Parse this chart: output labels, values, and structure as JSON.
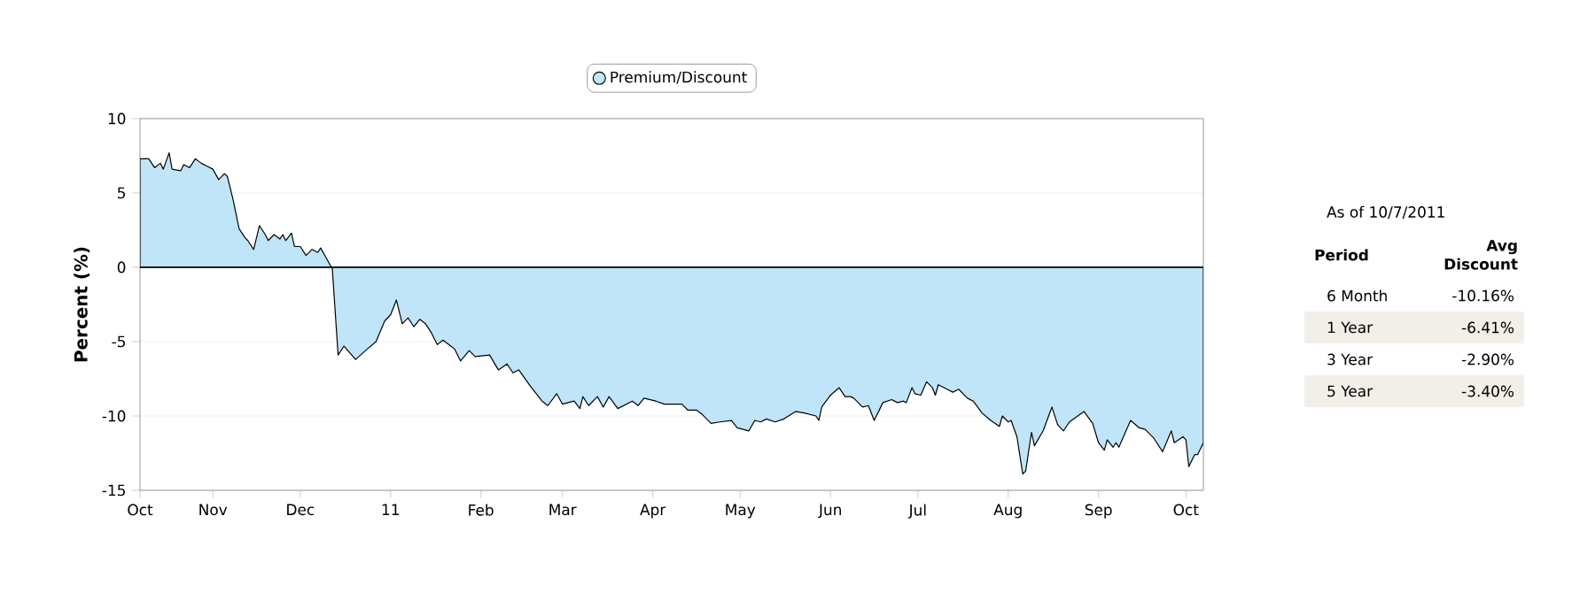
{
  "chart_data": [
    {
      "type": "area",
      "ylabel": "Percent (%)",
      "x": [
        "2010-10-07",
        "2010-10-10",
        "2010-10-12",
        "2010-10-14",
        "2010-10-15",
        "2010-10-17",
        "2010-10-18",
        "2010-10-21",
        "2010-10-22",
        "2010-10-24",
        "2010-10-26",
        "2010-10-28",
        "2010-10-30",
        "2010-11-01",
        "2010-11-03",
        "2010-11-05",
        "2010-11-06",
        "2010-11-08",
        "2010-11-10",
        "2010-11-12",
        "2010-11-13",
        "2010-11-15",
        "2010-11-17",
        "2010-11-19",
        "2010-11-20",
        "2010-11-22",
        "2010-11-24",
        "2010-11-25",
        "2010-11-26",
        "2010-11-28",
        "2010-11-29",
        "2010-12-01",
        "2010-12-03",
        "2010-12-05",
        "2010-12-07",
        "2010-12-08",
        "2010-12-10",
        "2010-12-12",
        "2010-12-14",
        "2010-12-16",
        "2010-12-20",
        "2010-12-24",
        "2010-12-27",
        "2010-12-30",
        "2011-01-01",
        "2011-01-03",
        "2011-01-05",
        "2011-01-07",
        "2011-01-09",
        "2011-01-11",
        "2011-01-13",
        "2011-01-15",
        "2011-01-17",
        "2011-01-19",
        "2011-01-23",
        "2011-01-25",
        "2011-01-28",
        "2011-01-30",
        "2011-02-04",
        "2011-02-07",
        "2011-02-10",
        "2011-02-12",
        "2011-02-14",
        "2011-02-18",
        "2011-02-22",
        "2011-02-24",
        "2011-02-27",
        "2011-03-01",
        "2011-03-05",
        "2011-03-07",
        "2011-03-08",
        "2011-03-10",
        "2011-03-13",
        "2011-03-15",
        "2011-03-17",
        "2011-03-20",
        "2011-03-25",
        "2011-03-27",
        "2011-03-29",
        "2011-04-02",
        "2011-04-05",
        "2011-04-11",
        "2011-04-13",
        "2011-04-16",
        "2011-04-18",
        "2011-04-21",
        "2011-04-24",
        "2011-04-28",
        "2011-04-30",
        "2011-05-04",
        "2011-05-06",
        "2011-05-08",
        "2011-05-10",
        "2011-05-13",
        "2011-05-16",
        "2011-05-20",
        "2011-05-23",
        "2011-05-27",
        "2011-05-28",
        "2011-05-29",
        "2011-06-01",
        "2011-06-04",
        "2011-06-06",
        "2011-06-08",
        "2011-06-09",
        "2011-06-12",
        "2011-06-14",
        "2011-06-16",
        "2011-06-19",
        "2011-06-22",
        "2011-06-24",
        "2011-06-26",
        "2011-06-27",
        "2011-06-29",
        "2011-06-30",
        "2011-07-02",
        "2011-07-04",
        "2011-07-06",
        "2011-07-07",
        "2011-07-08",
        "2011-07-11",
        "2011-07-13",
        "2011-07-15",
        "2011-07-18",
        "2011-07-20",
        "2011-07-23",
        "2011-07-26",
        "2011-07-29",
        "2011-07-30",
        "2011-08-01",
        "2011-08-02",
        "2011-08-04",
        "2011-08-06",
        "2011-08-07",
        "2011-08-09",
        "2011-08-10",
        "2011-08-13",
        "2011-08-16",
        "2011-08-18",
        "2011-08-20",
        "2011-08-22",
        "2011-08-27",
        "2011-08-30",
        "2011-09-01",
        "2011-09-03",
        "2011-09-04",
        "2011-09-06",
        "2011-09-07",
        "2011-09-08",
        "2011-09-12",
        "2011-09-15",
        "2011-09-17",
        "2011-09-20",
        "2011-09-23",
        "2011-09-26",
        "2011-09-27",
        "2011-09-30",
        "2011-10-01",
        "2011-10-02",
        "2011-10-04",
        "2011-10-05",
        "2011-10-07"
      ],
      "series": [
        {
          "name": "Premium/Discount",
          "color": "#c0e4f8",
          "values": [
            7.3,
            7.3,
            6.7,
            7.0,
            6.6,
            7.7,
            6.6,
            6.5,
            6.9,
            6.7,
            7.3,
            7.0,
            6.8,
            6.6,
            5.9,
            6.3,
            6.1,
            4.5,
            2.6,
            2.0,
            1.8,
            1.2,
            2.8,
            2.2,
            1.8,
            2.2,
            1.9,
            2.2,
            1.8,
            2.3,
            1.4,
            1.4,
            0.8,
            1.2,
            1.0,
            1.3,
            0.6,
            -0.1,
            -5.9,
            -5.3,
            -6.2,
            -5.5,
            -5.0,
            -3.6,
            -3.2,
            -2.2,
            -3.8,
            -3.4,
            -4.0,
            -3.5,
            -3.8,
            -4.4,
            -5.2,
            -4.9,
            -5.5,
            -6.3,
            -5.6,
            -6.0,
            -5.9,
            -6.9,
            -6.5,
            -7.1,
            -6.9,
            -8.0,
            -9.0,
            -9.3,
            -8.5,
            -9.2,
            -9.0,
            -9.5,
            -8.7,
            -9.3,
            -8.7,
            -9.4,
            -8.7,
            -9.5,
            -9.0,
            -9.3,
            -8.8,
            -9.0,
            -9.2,
            -9.2,
            -9.6,
            -9.6,
            -9.9,
            -10.5,
            -10.4,
            -10.3,
            -10.8,
            -11.0,
            -10.3,
            -10.4,
            -10.2,
            -10.4,
            -10.2,
            -9.7,
            -9.8,
            -10.0,
            -10.3,
            -9.4,
            -8.6,
            -8.1,
            -8.7,
            -8.7,
            -8.8,
            -9.4,
            -9.3,
            -10.3,
            -9.1,
            -8.9,
            -9.1,
            -9.0,
            -9.1,
            -8.1,
            -8.5,
            -8.6,
            -7.7,
            -8.1,
            -8.6,
            -7.9,
            -8.2,
            -8.4,
            -8.2,
            -8.8,
            -9.0,
            -9.8,
            -10.3,
            -10.7,
            -10.0,
            -10.4,
            -10.3,
            -11.4,
            -13.9,
            -13.7,
            -11.1,
            -12.0,
            -11.0,
            -9.4,
            -10.6,
            -11.0,
            -10.4,
            -9.7,
            -10.5,
            -11.8,
            -12.3,
            -11.6,
            -12.1,
            -11.8,
            -12.1,
            -10.3,
            -10.8,
            -10.9,
            -11.5,
            -12.4,
            -11.0,
            -11.8,
            -11.4,
            -11.6,
            -13.4,
            -12.6,
            -12.6,
            -11.8
          ]
        }
      ],
      "xlim": [
        "2010-10-07",
        "2011-10-07"
      ],
      "xticks": [
        {
          "value": "2010-10-07",
          "label": "Oct"
        },
        {
          "value": "2010-11-01",
          "label": "Nov"
        },
        {
          "value": "2010-12-01",
          "label": "Dec"
        },
        {
          "value": "2011-01-01",
          "label": "11"
        },
        {
          "value": "2011-02-01",
          "label": "Feb"
        },
        {
          "value": "2011-03-01",
          "label": "Mar"
        },
        {
          "value": "2011-04-01",
          "label": "Apr"
        },
        {
          "value": "2011-05-01",
          "label": "May"
        },
        {
          "value": "2011-06-01",
          "label": "Jun"
        },
        {
          "value": "2011-07-01",
          "label": "Jul"
        },
        {
          "value": "2011-08-01",
          "label": "Aug"
        },
        {
          "value": "2011-09-01",
          "label": "Sep"
        },
        {
          "value": "2011-10-01",
          "label": "Oct"
        }
      ],
      "ylim": [
        -15,
        10
      ],
      "yticks": [
        -15,
        -10,
        -5,
        0,
        5,
        10
      ],
      "ref_lines": [
        {
          "axis": "y",
          "value": 0,
          "color": "#000000"
        }
      ],
      "grid": "y",
      "legend": "top"
    },
    {
      "type": "other",
      "title": "As of 10/7/2011",
      "annotations": [
        "Period",
        "Avg Discount"
      ],
      "categories": [
        "6 Month",
        "1 Year",
        "3 Year",
        "5 Year"
      ],
      "value_labels": [
        "-10.16%",
        "-6.41%",
        "-2.90%",
        "-3.40%"
      ]
    }
  ]
}
